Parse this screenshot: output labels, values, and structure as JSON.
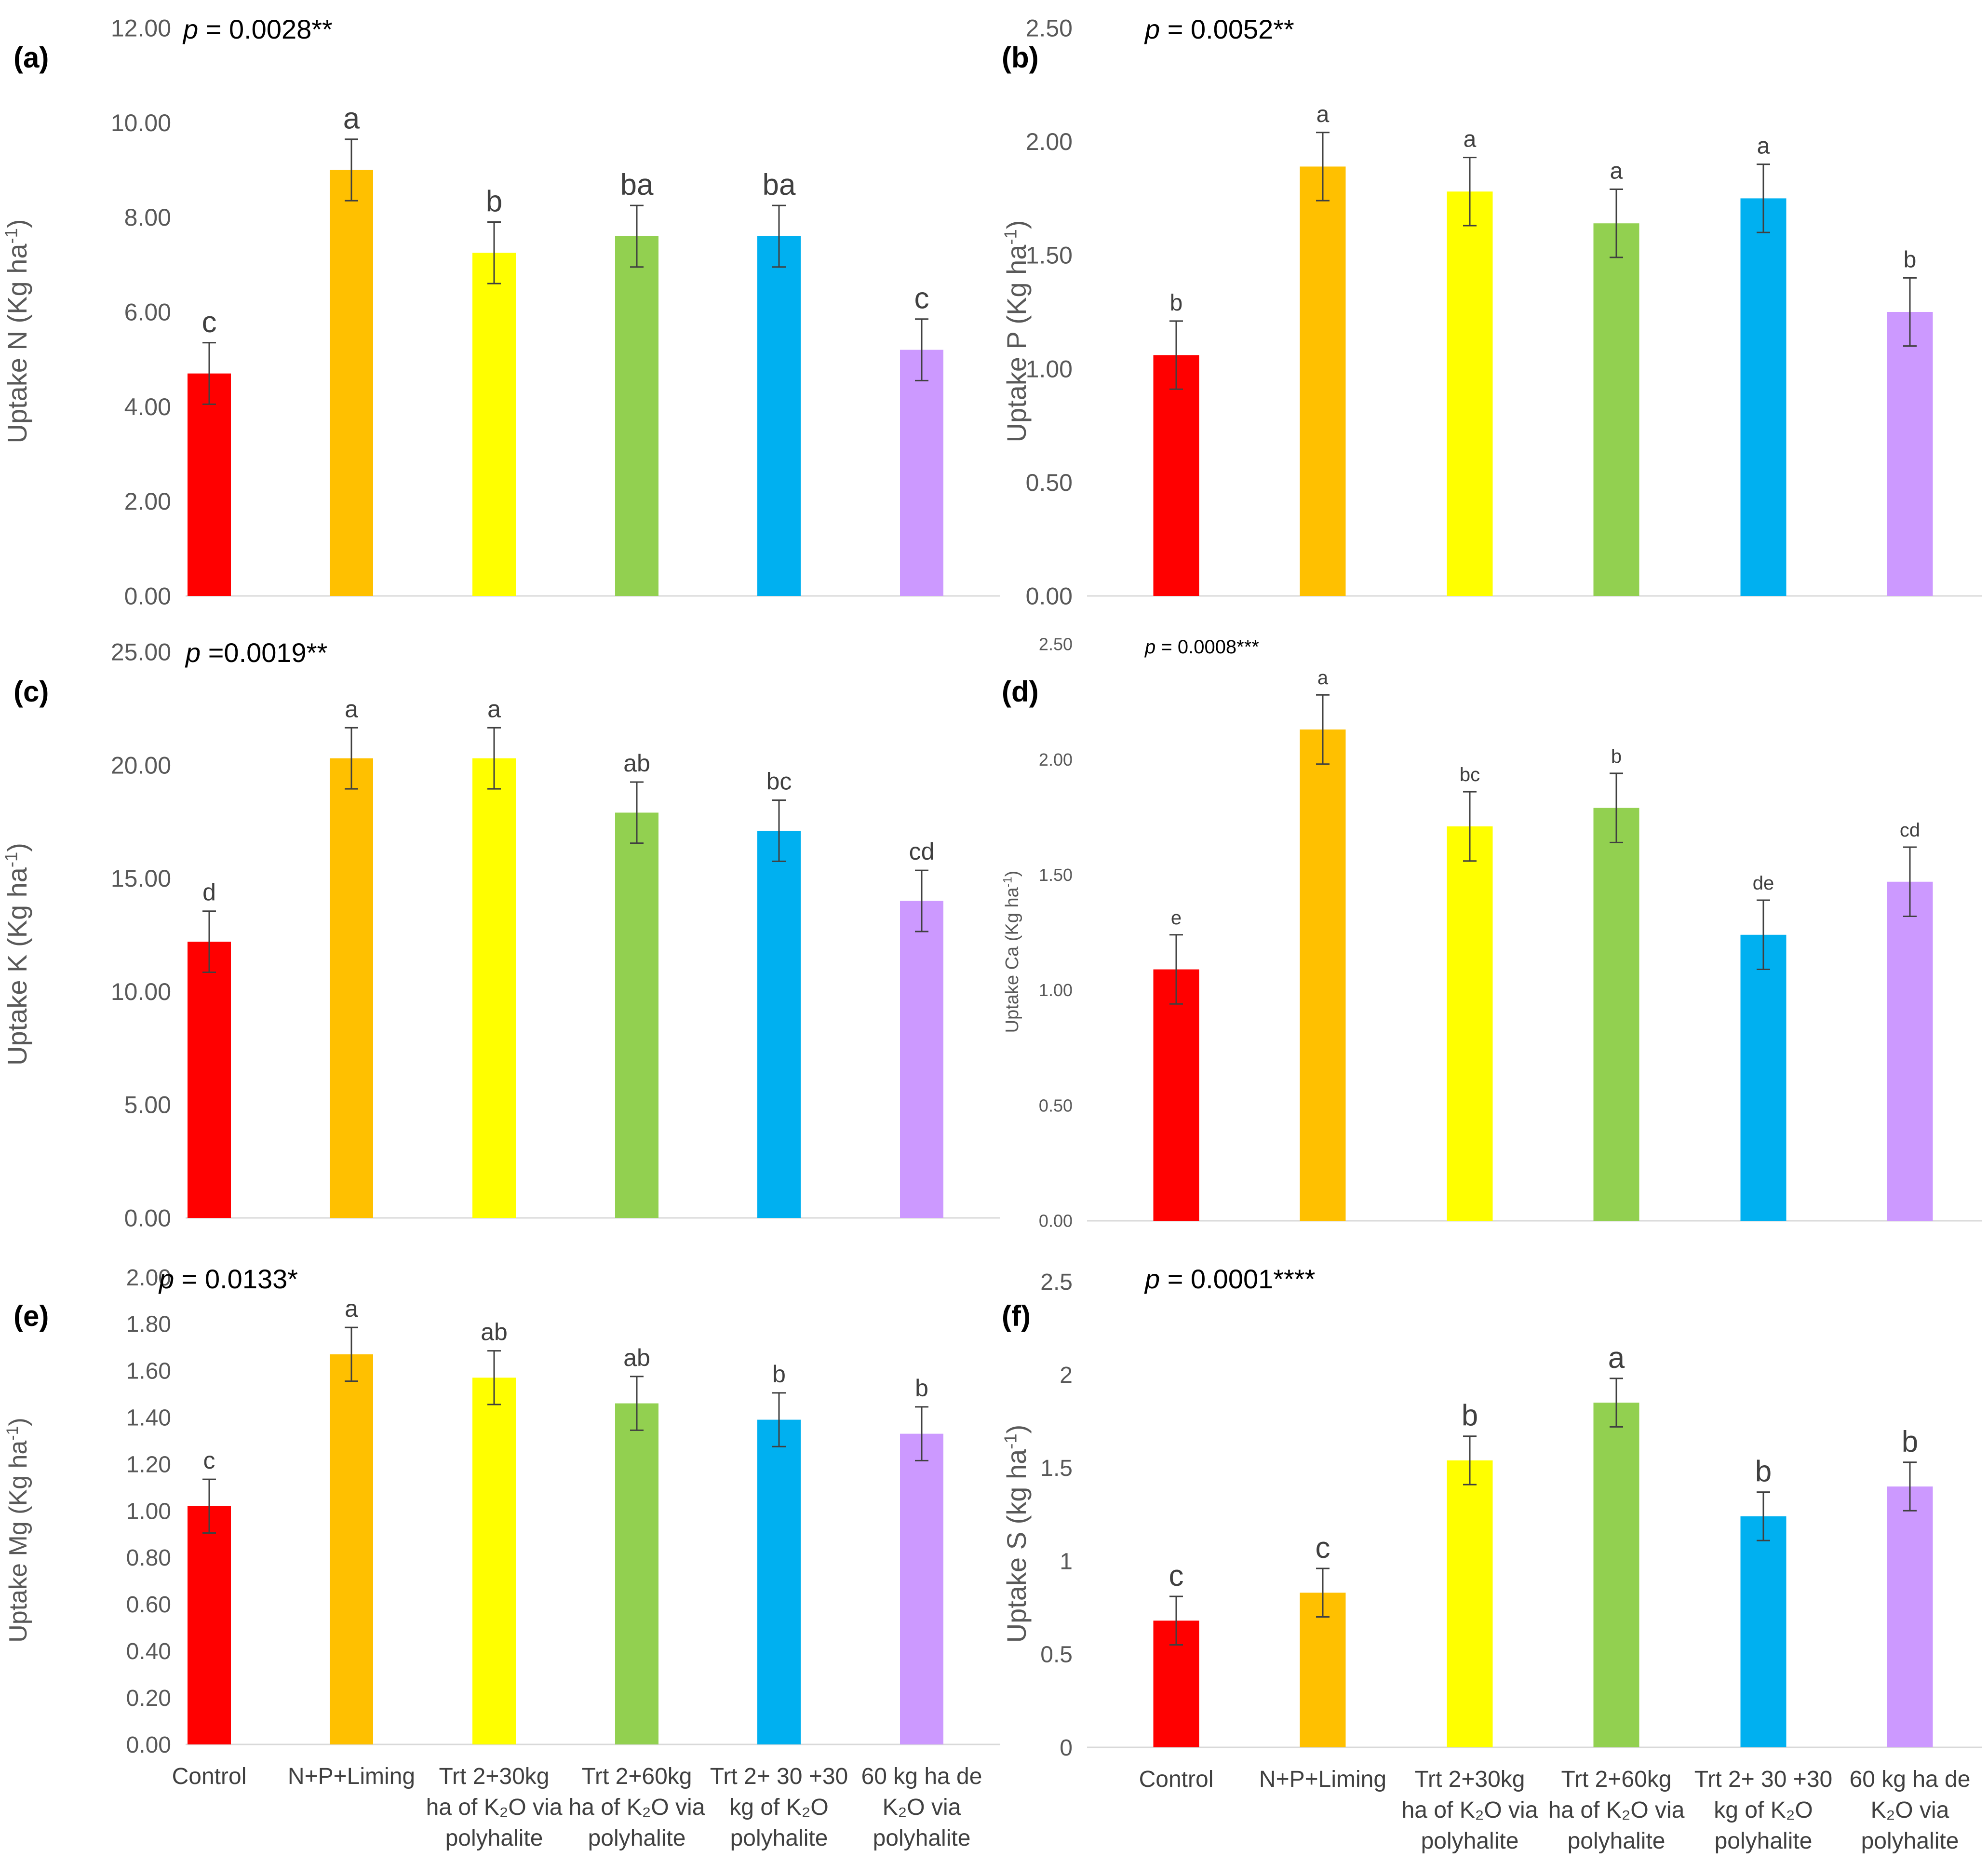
{
  "categories": [
    [
      "Control"
    ],
    [
      "N+P+Liming"
    ],
    [
      "Trt 2+30kg",
      "ha of K₂O via",
      "polyhalite"
    ],
    [
      "Trt 2+60kg",
      "ha of K₂O via",
      "polyhalite"
    ],
    [
      "Trt 2+ 30 +30",
      "kg of K₂O",
      "polyhalite"
    ],
    [
      "60 kg ha de",
      "K₂O via",
      "polyhalite"
    ]
  ],
  "colors": [
    "#ff0000",
    "#ffc000",
    "#ffff00",
    "#92d050",
    "#00b0f0",
    "#cc99ff"
  ],
  "chart_data": [
    {
      "type": "bar",
      "panel": "(a)",
      "p_prefix": "p",
      "p_value": " = 0.0028**",
      "ylabel": "Uptake N (Kg ha",
      "ylabel_sup": "-1",
      "ylabel_end": ")",
      "ylim": [
        0,
        12
      ],
      "yticks": [
        0,
        2,
        4,
        6,
        8,
        10,
        12
      ],
      "ytick_labels": [
        "0.00",
        "2.00",
        "4.00",
        "6.00",
        "8.00",
        "10.00",
        "12.00"
      ],
      "values": [
        4.7,
        9.0,
        7.25,
        7.6,
        7.6,
        5.2
      ],
      "errors": [
        0.65,
        0.65,
        0.65,
        0.65,
        0.65,
        0.65
      ],
      "letters": [
        "c",
        "a",
        "b",
        "ba",
        "ba",
        "c"
      ]
    },
    {
      "type": "bar",
      "panel": "(b)",
      "p_prefix": "p",
      "p_value": " = 0.0052**",
      "ylabel": "Uptake P (Kg ha",
      "ylabel_sup": "-1",
      "ylabel_end": ")",
      "ylim": [
        0,
        2.5
      ],
      "yticks": [
        0,
        0.5,
        1,
        1.5,
        2,
        2.5
      ],
      "ytick_labels": [
        "0.00",
        "0.50",
        "1.00",
        "1.50",
        "2.00",
        "2.50"
      ],
      "values": [
        1.06,
        1.89,
        1.78,
        1.64,
        1.75,
        1.25
      ],
      "errors": [
        0.15,
        0.15,
        0.15,
        0.15,
        0.15,
        0.15
      ],
      "letters": [
        "b",
        "a",
        "a",
        "a",
        "a",
        "b"
      ]
    },
    {
      "type": "bar",
      "panel": "(c)",
      "p_prefix": "p",
      "p_value": " =0.0019**",
      "ylabel": "Uptake K (Kg ha",
      "ylabel_sup": "-1",
      "ylabel_end": ")",
      "ylim": [
        0,
        25
      ],
      "yticks": [
        0,
        5,
        10,
        15,
        20,
        25
      ],
      "ytick_labels": [
        "0.00",
        "5.00",
        "10.00",
        "15.00",
        "20.00",
        "25.00"
      ],
      "values": [
        12.2,
        20.3,
        20.3,
        17.9,
        17.1,
        14.0
      ],
      "errors": [
        1.35,
        1.35,
        1.35,
        1.35,
        1.35,
        1.35
      ],
      "letters": [
        "d",
        "a",
        "a",
        "ab",
        "bc",
        "cd"
      ]
    },
    {
      "type": "bar",
      "panel": "(d)",
      "p_prefix": "p",
      "p_value": " = 0.0008***",
      "ylabel": "Uptake Ca (Kg ha",
      "ylabel_sup": "-1",
      "ylabel_end": ")",
      "ylim": [
        0,
        2.5
      ],
      "yticks": [
        0,
        0.5,
        1,
        1.5,
        2,
        2.5
      ],
      "ytick_labels": [
        "0.00",
        "0.50",
        "1.00",
        "1.50",
        "2.00",
        "2.50"
      ],
      "values": [
        1.09,
        2.13,
        1.71,
        1.79,
        1.24,
        1.47
      ],
      "errors": [
        0.15,
        0.15,
        0.15,
        0.15,
        0.15,
        0.15
      ],
      "letters": [
        "e",
        "a",
        "bc",
        "b",
        "de",
        "cd"
      ]
    },
    {
      "type": "bar",
      "panel": "(e)",
      "p_prefix": "p",
      "p_value": " = 0.0133*",
      "ylabel": "Uptake Mg (Kg ha",
      "ylabel_sup": "-1",
      "ylabel_end": ")",
      "ylim": [
        0,
        2
      ],
      "yticks": [
        0,
        0.2,
        0.4,
        0.6,
        0.8,
        1,
        1.2,
        1.4,
        1.6,
        1.8,
        2
      ],
      "ytick_labels": [
        "0.00",
        "0.20",
        "0.40",
        "0.60",
        "0.80",
        "1.00",
        "1.20",
        "1.40",
        "1.60",
        "1.80",
        "2.00"
      ],
      "values": [
        1.02,
        1.67,
        1.57,
        1.46,
        1.39,
        1.33
      ],
      "errors": [
        0.115,
        0.115,
        0.115,
        0.115,
        0.115,
        0.115
      ],
      "letters": [
        "c",
        "a",
        "ab",
        "ab",
        "b",
        "b"
      ]
    },
    {
      "type": "bar",
      "panel": "(f)",
      "p_prefix": "p",
      "p_value": " = 0.0001****",
      "ylabel": "Uptake S (kg ha",
      "ylabel_sup": "-1",
      "ylabel_end": ")",
      "ylim": [
        0,
        2.5
      ],
      "yticks": [
        0,
        0.5,
        1,
        1.5,
        2,
        2.5
      ],
      "ytick_labels": [
        "0",
        "0.5",
        "1",
        "1.5",
        "2",
        "2.5"
      ],
      "values": [
        0.68,
        0.83,
        1.54,
        1.85,
        1.24,
        1.4
      ],
      "errors": [
        0.13,
        0.13,
        0.13,
        0.13,
        0.13,
        0.13
      ],
      "letters": [
        "c",
        "c",
        "b",
        "a",
        "b",
        "b"
      ]
    }
  ]
}
